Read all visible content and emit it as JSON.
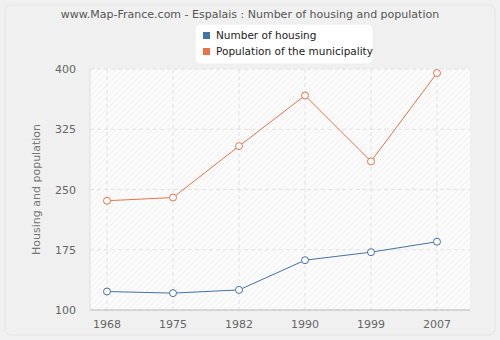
{
  "chart_data": {
    "type": "line",
    "title": "www.Map-France.com - Espalais : Number of housing and population",
    "y_label": "Housing and population",
    "categories": [
      "1968",
      "1975",
      "1982",
      "1990",
      "1999",
      "2007"
    ],
    "series": [
      {
        "name": "Number of housing",
        "color": "#4572a7",
        "marker": "circle",
        "values": [
          123,
          121,
          125,
          162,
          172,
          185
        ]
      },
      {
        "name": "Population of the municipality",
        "color": "#e8734a",
        "marker": "circle",
        "values": [
          236,
          240,
          304,
          367,
          285,
          395
        ]
      }
    ],
    "ylim": [
      100,
      400
    ],
    "yticks": [
      100,
      175,
      250,
      325,
      400
    ],
    "grid": true,
    "legend": "top"
  }
}
